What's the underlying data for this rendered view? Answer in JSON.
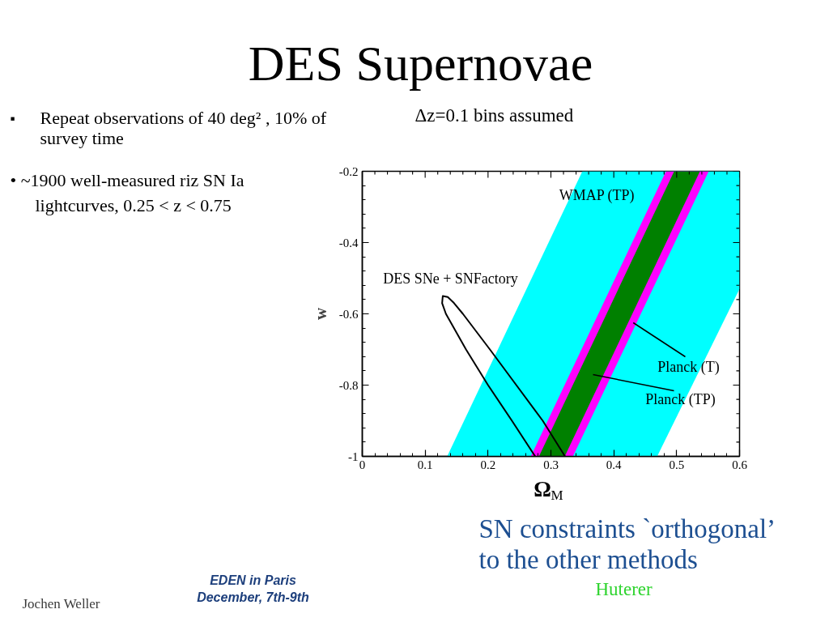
{
  "chart_data": {
    "type": "area",
    "title": "DES Supernovae",
    "xlabel": "Ω$_{M}$",
    "ylabel": "w",
    "xlim": [
      0,
      0.6
    ],
    "ylim": [
      -1,
      -0.2
    ],
    "xticks": [
      0,
      {
        "value": 0.02,
        "label": null
      },
      {
        "value": 0.04,
        "label": null
      },
      {
        "value": 0.06,
        "label": null
      },
      {
        "value": 0.08,
        "label": null
      },
      0.1,
      {
        "value": 0.12,
        "label": null
      },
      {
        "value": 0.14,
        "label": null
      },
      {
        "value": 0.16,
        "label": null
      },
      {
        "value": 0.18,
        "label": null
      },
      0.2,
      {
        "value": 0.22,
        "label": null
      },
      {
        "value": 0.24,
        "label": null
      },
      {
        "value": 0.26,
        "label": null
      },
      {
        "value": 0.28,
        "label": null
      },
      0.3,
      {
        "value": 0.32,
        "label": null
      },
      {
        "value": 0.34,
        "label": null
      },
      {
        "value": 0.36,
        "label": null
      },
      {
        "value": 0.38,
        "label": null
      },
      0.4,
      {
        "value": 0.42,
        "label": null
      },
      {
        "value": 0.44,
        "label": null
      },
      {
        "value": 0.46,
        "label": null
      },
      {
        "value": 0.48,
        "label": null
      },
      0.5,
      {
        "value": 0.52,
        "label": null
      },
      {
        "value": 0.54,
        "label": null
      },
      {
        "value": 0.56,
        "label": null
      },
      {
        "value": 0.58,
        "label": null
      },
      0.6
    ],
    "yticks": [
      -1,
      {
        "value": -0.96,
        "label": null
      },
      {
        "value": -0.92,
        "label": null
      },
      {
        "value": -0.88,
        "label": null
      },
      {
        "value": -0.84,
        "label": null
      },
      -0.8,
      {
        "value": -0.76,
        "label": null
      },
      {
        "value": -0.72,
        "label": null
      },
      {
        "value": -0.68,
        "label": null
      },
      {
        "value": -0.64,
        "label": null
      },
      -0.6,
      {
        "value": -0.56,
        "label": null
      },
      {
        "value": -0.52,
        "label": null
      },
      {
        "value": -0.48,
        "label": null
      },
      {
        "value": -0.44,
        "label": null
      },
      -0.4,
      {
        "value": -0.36,
        "label": null
      },
      {
        "value": -0.32,
        "label": null
      },
      {
        "value": -0.28,
        "label": null
      },
      {
        "value": -0.24,
        "label": null
      },
      -0.2
    ],
    "series": [
      {
        "color": "#00ffff",
        "x": [
          0.135,
          0.469,
          0.6,
          0.6,
          0.35
        ],
        "values": [
          -1,
          -1,
          -0.53,
          -0.2,
          -0.2
        ]
      },
      {
        "color": "#ff00ff",
        "x": [
          0.268,
          0.335,
          0.551,
          0.483
        ],
        "values": [
          -1,
          -1,
          -0.2,
          -0.2
        ]
      },
      {
        "color": "#008000",
        "x": [
          0.281,
          0.322,
          0.537,
          0.496
        ],
        "values": [
          -1,
          -1,
          -0.2,
          -0.2
        ]
      },
      {
        "type": "line",
        "color": "#000000",
        "line_style": "solid",
        "x": [
          0.275,
          0.238,
          0.2,
          0.165,
          0.133,
          0.127,
          0.128,
          0.136,
          0.146,
          0.16,
          0.203,
          0.245,
          0.287,
          0.3225
        ],
        "values": [
          -1,
          -0.9,
          -0.8,
          -0.7,
          -0.6,
          -0.57,
          -0.55,
          -0.553,
          -0.57,
          -0.6,
          -0.7,
          -0.8,
          -0.9,
          -1
        ]
      }
    ],
    "annotations": [
      "Δz=0.1 bins assumed",
      "▪ Repeat observations of 40 deg² , 10% of survey time",
      "• ~1900 well-measured riz SN Ia lightcurves, 0.25 < z < 0.75",
      "WMAP (TP)",
      "DES SNe + SNFactory",
      {
        "text": "Planck (T)",
        "x": 0.431,
        "y": -0.625
      },
      "Planck (TP)",
      "SN constraints `orthogonal’ to the other methods",
      "Huterer",
      "EDEN in Paris December, 7th-9th",
      "Jochen Weller"
    ]
  }
}
